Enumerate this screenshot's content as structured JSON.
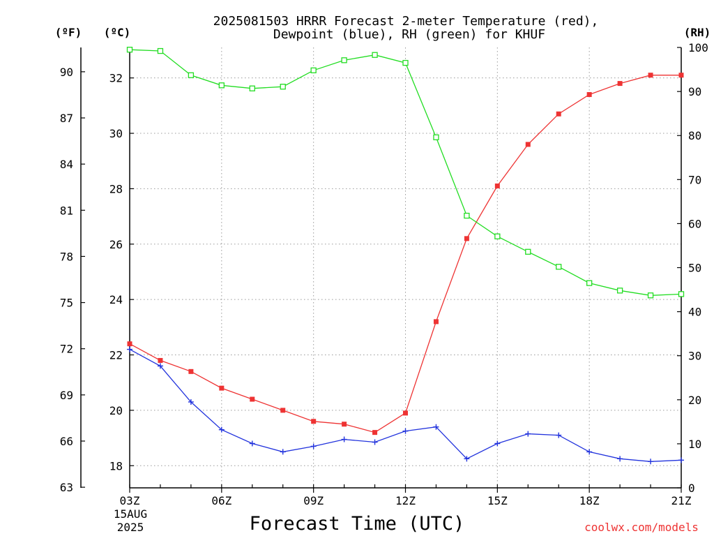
{
  "chart_data": {
    "type": "line",
    "title_line1": "2025081503 HRRR Forecast 2-meter Temperature (red),",
    "title_line2": "Dewpoint (blue), RH (green) for KHUF",
    "xlabel": "Forecast Time (UTC)",
    "watermark": "coolwx.com/models",
    "left_units_f": "(ºF)",
    "left_units_c": "(ºC)",
    "right_units": "(RH)",
    "date_line1": "15AUG",
    "date_line2": "2025",
    "x_hours": [
      3,
      4,
      5,
      6,
      7,
      8,
      9,
      10,
      11,
      12,
      13,
      14,
      15,
      16,
      17,
      18,
      19,
      20,
      21
    ],
    "x_ticks": [
      {
        "hour": 3,
        "label": "03Z"
      },
      {
        "hour": 6,
        "label": "06Z"
      },
      {
        "hour": 9,
        "label": "09Z"
      },
      {
        "hour": 12,
        "label": "12Z"
      },
      {
        "hour": 15,
        "label": "15Z"
      },
      {
        "hour": 18,
        "label": "18Z"
      },
      {
        "hour": 21,
        "label": "21Z"
      }
    ],
    "xlim": [
      3,
      21
    ],
    "ylim_c": [
      17.2,
      33.1
    ],
    "ylim_rh": [
      0,
      100
    ],
    "y_ticks_f": [
      63,
      66,
      69,
      72,
      75,
      78,
      81,
      84,
      87,
      90
    ],
    "y_ticks_c": [
      18,
      20,
      22,
      24,
      26,
      28,
      30,
      32
    ],
    "y_ticks_rh": [
      0,
      10,
      20,
      30,
      40,
      50,
      60,
      70,
      80,
      90,
      100
    ],
    "grid": true,
    "series": [
      {
        "name": "Temperature",
        "color": "#ee3333",
        "marker": "filled-square",
        "axis": "celsius",
        "values": [
          22.4,
          21.8,
          21.4,
          20.8,
          20.4,
          20.0,
          19.6,
          19.5,
          19.2,
          19.9,
          23.2,
          26.2,
          28.1,
          29.6,
          30.7,
          31.4,
          31.8,
          32.1,
          32.1
        ]
      },
      {
        "name": "Dewpoint",
        "color": "#2233dd",
        "marker": "plus",
        "axis": "celsius",
        "values": [
          22.2,
          21.6,
          20.3,
          19.3,
          18.8,
          18.5,
          18.7,
          18.95,
          18.85,
          19.25,
          19.4,
          18.25,
          18.8,
          19.15,
          19.1,
          18.5,
          18.25,
          18.15,
          18.2
        ]
      },
      {
        "name": "RH",
        "color": "#22dd22",
        "marker": "open-square",
        "axis": "rh",
        "values": [
          99.5,
          99.2,
          93.7,
          91.4,
          90.7,
          91.1,
          94.8,
          97.1,
          98.3,
          96.5,
          79.6,
          61.8,
          57.1,
          53.6,
          50.2,
          46.5,
          44.8,
          43.7,
          44.0
        ]
      }
    ]
  }
}
